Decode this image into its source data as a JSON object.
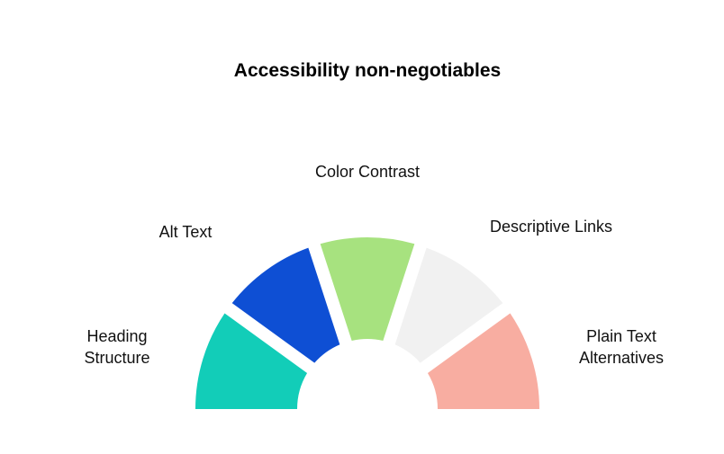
{
  "title": "Accessibility non-negotiables",
  "segments": [
    {
      "label_lines": [
        "Heading",
        "Structure"
      ],
      "color": "#12cdb8"
    },
    {
      "label_lines": [
        "Alt Text"
      ],
      "color": "#0e4fd4"
    },
    {
      "label_lines": [
        "Color Contrast"
      ],
      "color": "#a7e27f"
    },
    {
      "label_lines": [
        "Descriptive Links"
      ],
      "color": "#f1f1f1"
    },
    {
      "label_lines": [
        "Plain Text",
        "Alternatives"
      ],
      "color": "#f8ada1"
    }
  ]
}
